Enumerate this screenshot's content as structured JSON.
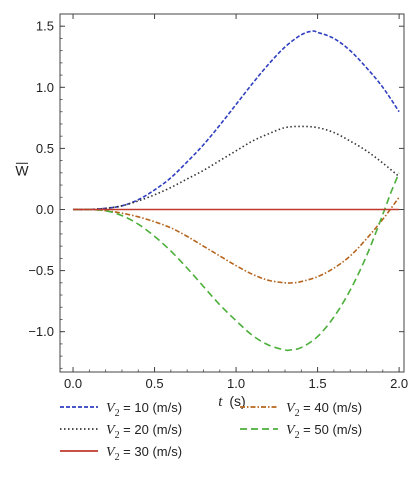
{
  "chart_data": {
    "type": "line",
    "xlabel_var": "t",
    "xlabel_unit": "(s)",
    "ylabel": "W",
    "xlim": [
      -0.08,
      2.03
    ],
    "ylim": [
      -1.33,
      1.6
    ],
    "xticks": [
      0.0,
      0.5,
      1.0,
      1.5,
      2.0
    ],
    "xtick_labels": [
      "0.0",
      "0.5",
      "1.0",
      "1.5",
      "2.0"
    ],
    "yticks": [
      -1.0,
      -0.5,
      0.0,
      0.5,
      1.0,
      1.5
    ],
    "ytick_labels": [
      "−1.0",
      "−0.5",
      "0.0",
      "0.5",
      "1.0",
      "1.5"
    ],
    "legend_placement": "bottom",
    "series": [
      {
        "name": "V2 = 10 (m/s)",
        "label_var": "V",
        "label_sub": "2",
        "label_rest": " = 10 (m/s)",
        "color": "#2f3fc0",
        "dash": "4,2",
        "x": [
          0.0,
          0.1,
          0.2,
          0.3,
          0.4,
          0.5,
          0.6,
          0.7,
          0.8,
          0.9,
          1.0,
          1.1,
          1.2,
          1.3,
          1.4,
          1.47,
          1.5,
          1.6,
          1.7,
          1.8,
          1.9,
          2.0
        ],
        "y": [
          0.0,
          0.0,
          0.01,
          0.03,
          0.08,
          0.16,
          0.26,
          0.39,
          0.53,
          0.69,
          0.86,
          1.03,
          1.19,
          1.33,
          1.43,
          1.46,
          1.45,
          1.4,
          1.3,
          1.16,
          1.0,
          0.8
        ]
      },
      {
        "name": "V2 = 20 (m/s)",
        "label_var": "V",
        "label_sub": "2",
        "label_rest": " = 20 (m/s)",
        "color": "#333333",
        "dash": "1.5,2.5",
        "x": [
          0.0,
          0.1,
          0.2,
          0.3,
          0.4,
          0.5,
          0.6,
          0.7,
          0.8,
          0.9,
          1.0,
          1.1,
          1.2,
          1.3,
          1.4,
          1.5,
          1.6,
          1.7,
          1.8,
          1.9,
          2.0
        ],
        "y": [
          0.0,
          0.0,
          0.01,
          0.03,
          0.07,
          0.12,
          0.18,
          0.25,
          0.32,
          0.4,
          0.48,
          0.56,
          0.62,
          0.67,
          0.68,
          0.67,
          0.63,
          0.56,
          0.48,
          0.38,
          0.27
        ]
      },
      {
        "name": "V2 = 30 (m/s)",
        "label_var": "V",
        "label_sub": "2",
        "label_rest": " = 30 (m/s)",
        "color": "#c0392b",
        "dash": "",
        "x": [
          0.0,
          0.5,
          1.0,
          1.5,
          2.0
        ],
        "y": [
          0.0,
          0.0,
          0.0,
          0.0,
          0.0
        ]
      },
      {
        "name": "V2 = 40 (m/s)",
        "label_var": "V",
        "label_sub": "2",
        "label_rest": " = 40 (m/s)",
        "color": "#b5651d",
        "dash": "5,2,1.5,2",
        "x": [
          0.0,
          0.1,
          0.2,
          0.3,
          0.4,
          0.5,
          0.6,
          0.7,
          0.8,
          0.9,
          1.0,
          1.1,
          1.2,
          1.3,
          1.35,
          1.4,
          1.5,
          1.6,
          1.7,
          1.8,
          1.9,
          2.0
        ],
        "y": [
          0.0,
          0.0,
          -0.01,
          -0.03,
          -0.06,
          -0.1,
          -0.15,
          -0.22,
          -0.3,
          -0.38,
          -0.46,
          -0.53,
          -0.58,
          -0.6,
          -0.6,
          -0.59,
          -0.55,
          -0.48,
          -0.38,
          -0.24,
          -0.08,
          0.1
        ]
      },
      {
        "name": "V2 = 50 (m/s)",
        "label_var": "V",
        "label_sub": "2",
        "label_rest": " = 50 (m/s)",
        "color": "#4caf3a",
        "dash": "7,4",
        "x": [
          0.0,
          0.1,
          0.2,
          0.3,
          0.4,
          0.5,
          0.6,
          0.7,
          0.8,
          0.9,
          1.0,
          1.1,
          1.2,
          1.3,
          1.33,
          1.4,
          1.5,
          1.6,
          1.7,
          1.8,
          1.9,
          1.95,
          2.0
        ],
        "y": [
          0.0,
          0.0,
          -0.01,
          -0.05,
          -0.12,
          -0.22,
          -0.34,
          -0.48,
          -0.63,
          -0.78,
          -0.91,
          -1.03,
          -1.11,
          -1.15,
          -1.15,
          -1.13,
          -1.04,
          -0.88,
          -0.66,
          -0.38,
          -0.04,
          0.14,
          0.3
        ]
      }
    ]
  }
}
